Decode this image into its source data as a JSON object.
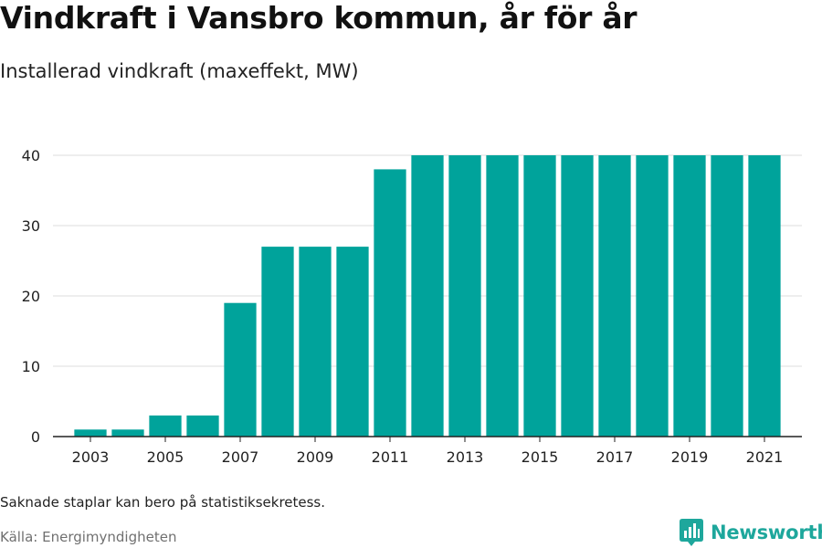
{
  "title": "Vindkraft i Vansbro kommun, år för år",
  "subtitle": "Installerad vindkraft (maxeffekt, MW)",
  "note": "Saknade staplar kan bero på statistiksekretess.",
  "source": "Källa: Energimyndigheten",
  "brand": {
    "name": "Newsworthy",
    "icon": "newsworthy-logo-icon",
    "color": "#1ea79c"
  },
  "chart_data": {
    "type": "bar",
    "title": "Vindkraft i Vansbro kommun, år för år",
    "subtitle": "Installerad vindkraft (maxeffekt, MW)",
    "xlabel": "",
    "ylabel": "",
    "categories": [
      "2003",
      "2004",
      "2005",
      "2006",
      "2007",
      "2008",
      "2009",
      "2010",
      "2011",
      "2012",
      "2013",
      "2014",
      "2015",
      "2016",
      "2017",
      "2018",
      "2019",
      "2020",
      "2021"
    ],
    "values": [
      1,
      1,
      3,
      3,
      19,
      27,
      27,
      27,
      38,
      40,
      40,
      40,
      40,
      40,
      40,
      40,
      40,
      40,
      40
    ],
    "x_tick_labels": [
      "2003",
      "2005",
      "2007",
      "2009",
      "2011",
      "2013",
      "2015",
      "2017",
      "2019",
      "2021"
    ],
    "y_ticks": [
      0,
      10,
      20,
      30,
      40
    ],
    "ylim": [
      0,
      40
    ],
    "grid": true,
    "bar_color": "#00a39b"
  }
}
